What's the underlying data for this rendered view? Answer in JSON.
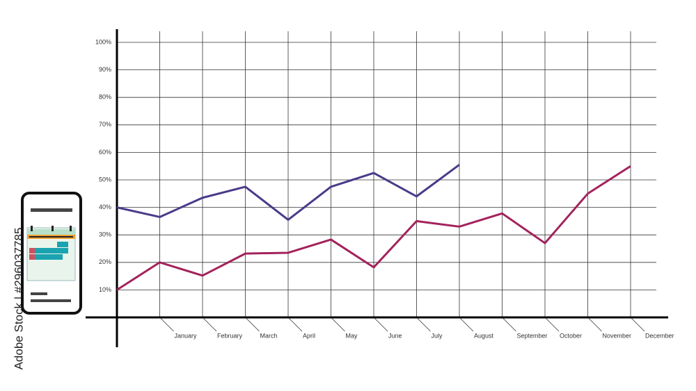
{
  "chart_data": {
    "type": "line",
    "categories": [
      null,
      "January",
      "February",
      "March",
      "April",
      "May",
      "June",
      "July",
      "August",
      "September",
      "October",
      "November",
      "December"
    ],
    "series": [
      {
        "color": "#4b3a8a",
        "values": [
          40,
          36.5,
          43.5,
          47.5,
          35.5,
          47.5,
          52.5,
          44,
          55.5,
          null,
          null,
          null,
          null
        ]
      },
      {
        "color": "#a3225c",
        "values": [
          10,
          20,
          15.2,
          23.2,
          23.5,
          28.3,
          18.2,
          35,
          33,
          37.8,
          27,
          45,
          55
        ]
      }
    ],
    "ylim": [
      0,
      100
    ],
    "yticks": [
      {
        "value": 10,
        "label": "10%"
      },
      {
        "value": 20,
        "label": "20%"
      },
      {
        "value": 30,
        "label": "30%"
      },
      {
        "value": 40,
        "label": "40%"
      },
      {
        "value": 50,
        "label": "50%"
      },
      {
        "value": 60,
        "label": "60%"
      },
      {
        "value": 70,
        "label": "70%"
      },
      {
        "value": 80,
        "label": "80%"
      },
      {
        "value": 90,
        "label": "90%"
      },
      {
        "value": 100,
        "label": "100%"
      }
    ],
    "grid": true,
    "watermark": "Adobe Stock | #296037785"
  }
}
